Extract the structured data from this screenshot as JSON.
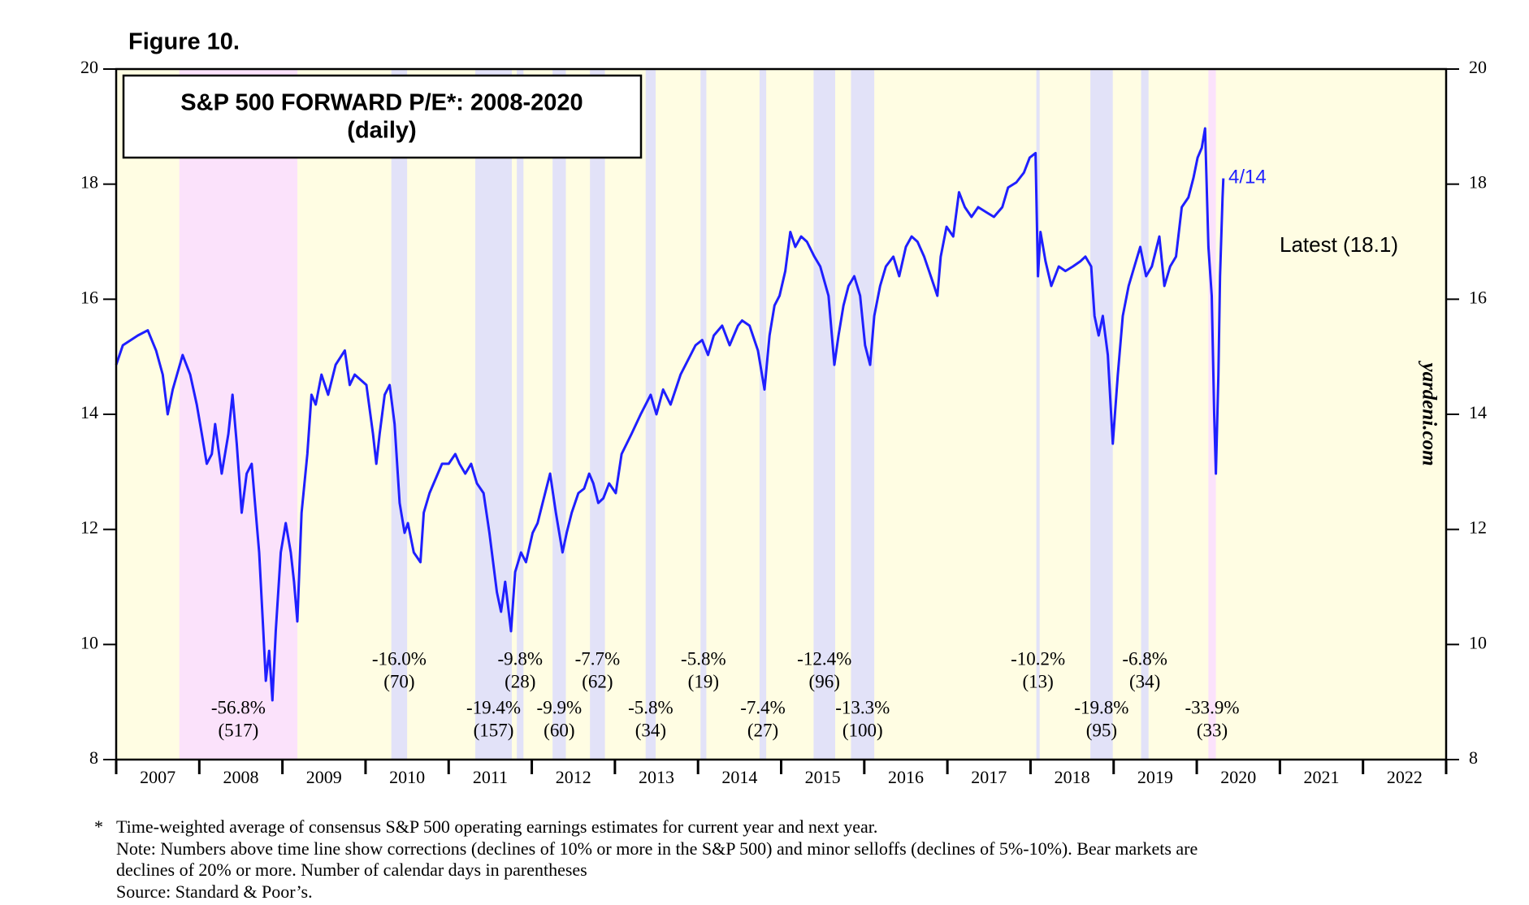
{
  "figure_label": "Figure 10.",
  "chart_data": {
    "type": "line",
    "title": "S&P 500 FORWARD P/E*: 2008-2020",
    "subtitle": "(daily)",
    "latest_label": "4/14",
    "latest_note": "Latest (18.1)",
    "source_watermark": "yardeni.com",
    "categories": [
      "2007",
      "2008",
      "2009",
      "2010",
      "2011",
      "2012",
      "2013",
      "2014",
      "2015",
      "2016",
      "2017",
      "2018",
      "2019",
      "2020",
      "2021",
      "2022"
    ],
    "xlim": [
      2007,
      2023
    ],
    "ylim": [
      8,
      20
    ],
    "yticks": [
      8,
      10,
      12,
      14,
      16,
      18,
      20
    ],
    "y2lim": [
      8,
      20
    ],
    "y2ticks": [
      8,
      10,
      12,
      14,
      16,
      18,
      20
    ],
    "background_color": "#fffde3",
    "series": [
      {
        "name": "S&P 500 Forward P/E",
        "color": "#1f1fff",
        "x": [
          2007.0,
          2007.08,
          2007.26,
          2007.38,
          2007.48,
          2007.56,
          2007.62,
          2007.68,
          2007.8,
          2007.89,
          2007.97,
          2008.03,
          2008.09,
          2008.15,
          2008.19,
          2008.27,
          2008.35,
          2008.4,
          2008.45,
          2008.51,
          2008.57,
          2008.63,
          2008.66,
          2008.72,
          2008.77,
          2008.8,
          2008.84,
          2008.88,
          2008.92,
          2008.98,
          2009.04,
          2009.1,
          2009.14,
          2009.18,
          2009.23,
          2009.3,
          2009.35,
          2009.4,
          2009.47,
          2009.55,
          2009.64,
          2009.75,
          2009.81,
          2009.87,
          2009.94,
          2010.01,
          2010.09,
          2010.13,
          2010.17,
          2010.23,
          2010.29,
          2010.35,
          2010.41,
          2010.47,
          2010.51,
          2010.58,
          2010.66,
          2010.7,
          2010.77,
          2010.82,
          2010.92,
          2011.0,
          2011.08,
          2011.13,
          2011.2,
          2011.27,
          2011.34,
          2011.42,
          2011.49,
          2011.58,
          2011.63,
          2011.68,
          2011.75,
          2011.8,
          2011.87,
          2011.93,
          2012.01,
          2012.07,
          2012.13,
          2012.22,
          2012.29,
          2012.37,
          2012.42,
          2012.48,
          2012.56,
          2012.63,
          2012.69,
          2012.74,
          2012.8,
          2012.86,
          2012.93,
          2013.01,
          2013.08,
          2013.2,
          2013.31,
          2013.43,
          2013.5,
          2013.58,
          2013.67,
          2013.79,
          2013.91,
          2013.97,
          2014.05,
          2014.12,
          2014.19,
          2014.29,
          2014.38,
          2014.48,
          2014.53,
          2014.62,
          2014.72,
          2014.8,
          2014.86,
          2014.92,
          2014.98,
          2015.05,
          2015.11,
          2015.17,
          2015.24,
          2015.31,
          2015.4,
          2015.47,
          2015.57,
          2015.64,
          2015.69,
          2015.75,
          2015.81,
          2015.88,
          2015.95,
          2016.01,
          2016.07,
          2016.12,
          2016.19,
          2016.26,
          2016.35,
          2016.42,
          2016.5,
          2016.57,
          2016.64,
          2016.72,
          2016.8,
          2016.88,
          2016.92,
          2016.99,
          2017.07,
          2017.14,
          2017.21,
          2017.29,
          2017.37,
          2017.47,
          2017.56,
          2017.66,
          2017.73,
          2017.83,
          2017.92,
          2017.99,
          2018.06,
          2018.09,
          2018.12,
          2018.18,
          2018.25,
          2018.34,
          2018.42,
          2018.51,
          2018.6,
          2018.66,
          2018.73,
          2018.77,
          2018.82,
          2018.87,
          2018.93,
          2018.99,
          2019.05,
          2019.11,
          2019.18,
          2019.25,
          2019.32,
          2019.39,
          2019.46,
          2019.55,
          2019.61,
          2019.68,
          2019.75,
          2019.82,
          2019.9,
          2019.96,
          2020.01,
          2020.06,
          2020.1,
          2020.14,
          2020.18,
          2020.21,
          2020.23,
          2020.26,
          2020.28,
          2020.31,
          2020.32
        ],
        "values": [
          14.86,
          15.2,
          15.37,
          15.46,
          15.11,
          14.69,
          14.0,
          14.43,
          15.03,
          14.69,
          14.17,
          13.66,
          13.14,
          13.31,
          13.83,
          12.97,
          13.66,
          14.34,
          13.49,
          12.29,
          12.97,
          13.14,
          12.63,
          11.6,
          10.23,
          9.37,
          9.89,
          9.03,
          10.23,
          11.6,
          12.11,
          11.6,
          11.09,
          10.4,
          12.29,
          13.31,
          14.34,
          14.17,
          14.69,
          14.34,
          14.86,
          15.11,
          14.51,
          14.69,
          14.6,
          14.51,
          13.66,
          13.14,
          13.66,
          14.34,
          14.51,
          13.83,
          12.46,
          11.94,
          12.11,
          11.6,
          11.43,
          12.29,
          12.63,
          12.8,
          13.14,
          13.14,
          13.31,
          13.14,
          12.97,
          13.14,
          12.8,
          12.63,
          11.94,
          10.91,
          10.57,
          11.09,
          10.23,
          11.26,
          11.6,
          11.43,
          11.94,
          12.11,
          12.46,
          12.97,
          12.29,
          11.6,
          11.94,
          12.29,
          12.63,
          12.71,
          12.97,
          12.8,
          12.46,
          12.54,
          12.8,
          12.63,
          13.31,
          13.66,
          14.0,
          14.34,
          14.0,
          14.43,
          14.17,
          14.69,
          15.03,
          15.2,
          15.29,
          15.03,
          15.37,
          15.54,
          15.2,
          15.54,
          15.63,
          15.54,
          15.11,
          14.43,
          15.37,
          15.89,
          16.06,
          16.49,
          17.17,
          16.91,
          17.09,
          17.0,
          16.74,
          16.57,
          16.06,
          14.86,
          15.37,
          15.89,
          16.23,
          16.4,
          16.06,
          15.2,
          14.86,
          15.71,
          16.23,
          16.57,
          16.74,
          16.4,
          16.91,
          17.09,
          17.0,
          16.74,
          16.4,
          16.06,
          16.74,
          17.26,
          17.09,
          17.86,
          17.6,
          17.43,
          17.6,
          17.51,
          17.43,
          17.6,
          17.94,
          18.03,
          18.2,
          18.46,
          18.54,
          16.4,
          17.17,
          16.66,
          16.23,
          16.57,
          16.49,
          16.57,
          16.66,
          16.74,
          16.57,
          15.71,
          15.37,
          15.71,
          15.03,
          13.49,
          14.69,
          15.71,
          16.23,
          16.57,
          16.91,
          16.4,
          16.57,
          17.09,
          16.23,
          16.57,
          16.74,
          17.6,
          17.77,
          18.11,
          18.46,
          18.63,
          18.97,
          16.91,
          16.06,
          14.0,
          12.97,
          14.69,
          16.4,
          17.77,
          18.1
        ]
      }
    ],
    "shaded_periods": [
      {
        "start": 2007.76,
        "end": 2009.18,
        "color": "#fbe2fb",
        "label": "-56.8%",
        "days": "(517)"
      },
      {
        "start": 2010.31,
        "end": 2010.5,
        "color": "#e2e2f8",
        "label": "-16.0%",
        "days": "(70)"
      },
      {
        "start": 2011.32,
        "end": 2011.76,
        "color": "#e2e2f8",
        "label": "-19.4%",
        "days": "(157)"
      },
      {
        "start": 2011.82,
        "end": 2011.9,
        "color": "#e2e2f8",
        "label": "-9.8%",
        "days": "(28)"
      },
      {
        "start": 2012.25,
        "end": 2012.41,
        "color": "#e2e2f8",
        "label": "-9.9%",
        "days": "(60)"
      },
      {
        "start": 2012.7,
        "end": 2012.88,
        "color": "#e2e2f8",
        "label": "-7.7%",
        "days": "(62)"
      },
      {
        "start": 2013.37,
        "end": 2013.49,
        "color": "#e2e2f8",
        "label": "-5.8%",
        "days": "(34)"
      },
      {
        "start": 2014.03,
        "end": 2014.1,
        "color": "#e2e2f8",
        "label": "-5.8%",
        "days": "(19)"
      },
      {
        "start": 2014.74,
        "end": 2014.82,
        "color": "#e2e2f8",
        "label": "-7.4%",
        "days": "(27)"
      },
      {
        "start": 2015.39,
        "end": 2015.65,
        "color": "#e2e2f8",
        "label": "-12.4%",
        "days": "(96)"
      },
      {
        "start": 2015.84,
        "end": 2016.12,
        "color": "#e2e2f8",
        "label": "-13.3%",
        "days": "(100)"
      },
      {
        "start": 2018.07,
        "end": 2018.11,
        "color": "#e2e2f8",
        "label": "-10.2%",
        "days": "(13)"
      },
      {
        "start": 2018.72,
        "end": 2018.99,
        "color": "#e2e2f8",
        "label": "-19.8%",
        "days": "(95)"
      },
      {
        "start": 2019.33,
        "end": 2019.42,
        "color": "#e2e2f8",
        "label": "-6.8%",
        "days": "(34)"
      },
      {
        "start": 2020.14,
        "end": 2020.23,
        "color": "#fbe2fb",
        "label": "-33.9%",
        "days": "(33)"
      }
    ]
  },
  "footnotes": {
    "marker": "*",
    "lines": [
      "Time-weighted average of consensus S&P 500 operating earnings estimates for current year and next year.",
      "Note: Numbers above time line show corrections (declines of 10% or more in the S&P 500) and minor selloffs (declines of 5%-10%). Bear markets are",
      "declines of 20% or more. Number of calendar days in parentheses",
      "Source: Standard & Poor’s."
    ]
  }
}
